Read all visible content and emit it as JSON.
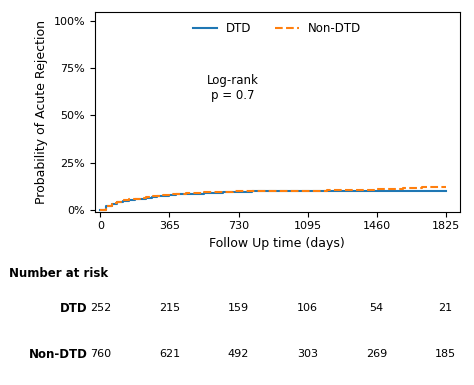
{
  "chart_data": {
    "type": "step",
    "title": "",
    "xlabel": "Follow Up time (days)",
    "ylabel": "Probability of Acute Rejection",
    "xlim": [
      -30,
      1900
    ],
    "ylim": [
      -0.01,
      1.05
    ],
    "xticks": [
      0,
      365,
      730,
      1095,
      1460,
      1825
    ],
    "yticks": [
      {
        "value": 0,
        "label": "0%"
      },
      {
        "value": 0.25,
        "label": "25%"
      },
      {
        "value": 0.5,
        "label": "50%"
      },
      {
        "value": 0.75,
        "label": "75%"
      },
      {
        "value": 1.0,
        "label": "100%"
      }
    ],
    "legend": "upper center",
    "annotations": [
      {
        "text": "Log-rank\np = 0.7",
        "x": 700,
        "y": 0.72
      }
    ],
    "series": [
      {
        "name": "DTD",
        "line_style": "solid",
        "x": [
          0,
          30,
          60,
          90,
          120,
          150,
          180,
          210,
          240,
          270,
          300,
          330,
          365,
          400,
          450,
          500,
          550,
          600,
          650,
          700,
          730,
          800,
          850,
          900,
          950,
          1000,
          1095,
          1150,
          1200,
          1300,
          1400,
          1460,
          1500,
          1600,
          1700,
          1825
        ],
        "values": [
          0.0,
          0.02,
          0.032,
          0.04,
          0.048,
          0.052,
          0.056,
          0.06,
          0.064,
          0.068,
          0.072,
          0.076,
          0.08,
          0.082,
          0.084,
          0.086,
          0.088,
          0.09,
          0.092,
          0.094,
          0.096,
          0.098,
          0.1,
          0.1,
          0.1,
          0.1,
          0.1,
          0.1,
          0.1,
          0.1,
          0.1,
          0.1,
          0.1,
          0.1,
          0.1,
          0.1
        ]
      },
      {
        "name": "Non-DTD",
        "line_style": "dashed",
        "x": [
          0,
          30,
          60,
          90,
          120,
          150,
          180,
          210,
          240,
          270,
          300,
          330,
          365,
          400,
          450,
          500,
          550,
          600,
          650,
          700,
          730,
          800,
          850,
          900,
          950,
          1000,
          1095,
          1150,
          1200,
          1300,
          1400,
          1460,
          1500,
          1550,
          1600,
          1650,
          1700,
          1825
        ],
        "values": [
          0.0,
          0.022,
          0.036,
          0.044,
          0.05,
          0.055,
          0.06,
          0.064,
          0.068,
          0.072,
          0.076,
          0.08,
          0.084,
          0.086,
          0.088,
          0.09,
          0.092,
          0.094,
          0.096,
          0.098,
          0.1,
          0.1,
          0.1,
          0.102,
          0.102,
          0.102,
          0.102,
          0.102,
          0.104,
          0.104,
          0.106,
          0.112,
          0.112,
          0.112,
          0.116,
          0.116,
          0.12,
          0.12
        ]
      }
    ],
    "risk_table": {
      "title": "Number at risk",
      "times": [
        0,
        365,
        730,
        1095,
        1460,
        1825
      ],
      "rows": [
        {
          "name": "DTD",
          "values": [
            252,
            215,
            159,
            106,
            54,
            21
          ]
        },
        {
          "name": "Non-DTD",
          "values": [
            760,
            621,
            492,
            303,
            269,
            185
          ]
        }
      ]
    }
  }
}
